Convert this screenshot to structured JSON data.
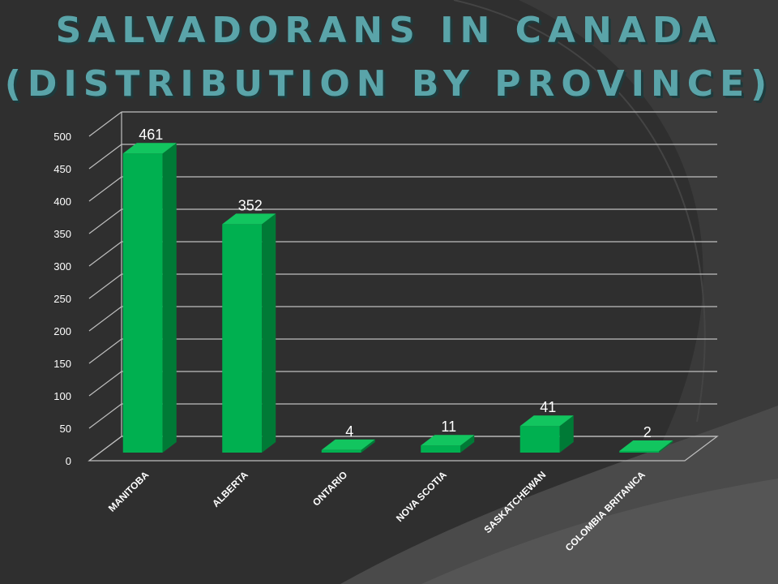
{
  "title_line1": "SALVADORANS IN CANADA",
  "title_line2": "(DISTRIBUTION BY PROVINCE)",
  "colors": {
    "background": "#2f2f2f",
    "accent_title": "#5aa4a9",
    "bar_front": "#00b050",
    "bar_side": "#007a36",
    "bar_top": "#12c55f",
    "grid": "#bfbfbf",
    "text": "#ffffff"
  },
  "chart_data": {
    "type": "bar",
    "title": "SALVADORANS IN CANADA (DISTRIBUTION BY PROVINCE)",
    "categories": [
      "MANITOBA",
      "ALBERTA",
      "ONTARIO",
      "NOVA SCOTIA",
      "SASKATCHEWAN",
      "COLOMBIA BRITANICA"
    ],
    "values": [
      461,
      352,
      4,
      11,
      41,
      2
    ],
    "data_labels": [
      "461",
      "352",
      "4",
      "11",
      "41",
      "2"
    ],
    "yticks": [
      "0",
      "50",
      "100",
      "150",
      "200",
      "250",
      "300",
      "350",
      "400",
      "450",
      "500"
    ],
    "ylim": [
      0,
      500
    ],
    "grid": true,
    "legend": "none",
    "xlabel": "",
    "ylabel": ""
  }
}
